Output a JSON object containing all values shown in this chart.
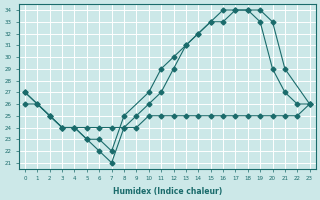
{
  "line1_x": [
    0,
    1,
    2,
    3,
    4,
    5,
    6,
    7,
    8,
    9,
    10,
    11,
    12,
    13,
    14,
    15,
    16,
    17,
    18,
    19,
    20,
    21,
    22,
    23
  ],
  "line1_y": [
    27,
    26,
    25,
    24,
    24,
    23,
    22,
    21,
    24,
    25,
    26,
    27,
    29,
    31,
    32,
    33,
    33,
    34,
    34,
    33,
    29,
    27,
    26,
    26
  ],
  "line2_x": [
    0,
    2,
    3,
    4,
    5,
    6,
    7,
    8,
    10,
    11,
    12,
    13,
    14,
    15,
    16,
    17,
    18,
    19,
    20,
    21,
    23
  ],
  "line2_y": [
    27,
    25,
    24,
    24,
    23,
    23,
    22,
    25,
    27,
    29,
    30,
    31,
    32,
    33,
    34,
    34,
    34,
    34,
    33,
    29,
    26
  ],
  "line3_x": [
    0,
    1,
    2,
    3,
    4,
    5,
    6,
    7,
    8,
    9,
    10,
    11,
    12,
    13,
    14,
    15,
    16,
    17,
    18,
    19,
    20,
    21,
    22,
    23
  ],
  "line3_y": [
    26,
    26,
    25,
    24,
    24,
    24,
    24,
    24,
    24,
    24,
    25,
    25,
    25,
    25,
    25,
    25,
    25,
    25,
    25,
    25,
    25,
    25,
    25,
    26
  ],
  "line_color": "#1a6b6b",
  "marker": "D",
  "marker_size": 2.5,
  "bg_color": "#cce8e8",
  "grid_color": "#ffffff",
  "xlabel": "Humidex (Indice chaleur)",
  "ylabel": "",
  "xlim": [
    -0.5,
    23.5
  ],
  "ylim": [
    20.5,
    34.5
  ],
  "yticks": [
    21,
    22,
    23,
    24,
    25,
    26,
    27,
    28,
    29,
    30,
    31,
    32,
    33,
    34
  ],
  "xticks": [
    0,
    1,
    2,
    3,
    4,
    5,
    6,
    7,
    8,
    9,
    10,
    11,
    12,
    13,
    14,
    15,
    16,
    17,
    18,
    19,
    20,
    21,
    22,
    23
  ]
}
